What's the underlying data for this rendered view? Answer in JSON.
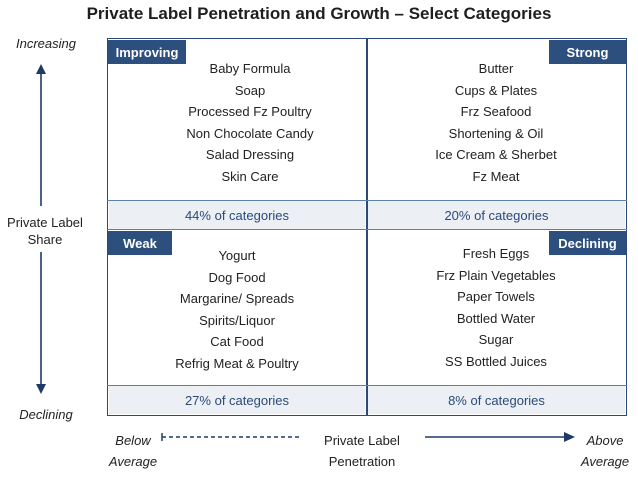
{
  "title": "Private Label Penetration and Growth – Select Categories",
  "y_axis": {
    "top": "Increasing",
    "label_line1": "Private Label",
    "label_line2": "Share",
    "bottom": "Declining"
  },
  "x_axis": {
    "left_line1": "Below",
    "left_line2": "Average",
    "label_line1": "Private Label",
    "label_line2": "Penetration",
    "right_line1": "Above",
    "right_line2": "Average"
  },
  "quadrants": {
    "improving": {
      "tag": "Improving",
      "share": "44% of categories",
      "items": [
        "Baby Formula",
        "Soap",
        "Processed Fz Poultry",
        "Non Chocolate Candy",
        "Salad Dressing",
        "Skin Care"
      ]
    },
    "strong": {
      "tag": "Strong",
      "share": "20% of categories",
      "items": [
        "Butter",
        "Cups & Plates",
        "Frz Seafood",
        "Shortening & Oil",
        "Ice Cream & Sherbet",
        "Fz Meat"
      ]
    },
    "weak": {
      "tag": "Weak",
      "share": "27% of categories",
      "items": [
        "Yogurt",
        "Dog Food",
        "Margarine/ Spreads",
        "Spirits/Liquor",
        "Cat Food",
        "Refrig Meat  & Poultry"
      ]
    },
    "declining": {
      "tag": "Declining",
      "share": "8% of categories",
      "items": [
        "Fresh Eggs",
        "Frz Plain Vegetables",
        "Paper Towels",
        "Bottled Water",
        "Sugar",
        "SS Bottled Juices"
      ]
    }
  },
  "colors": {
    "tag_bg": "#2c4f7e",
    "border": "#2b4a78",
    "band_bg": "#eceff4"
  }
}
